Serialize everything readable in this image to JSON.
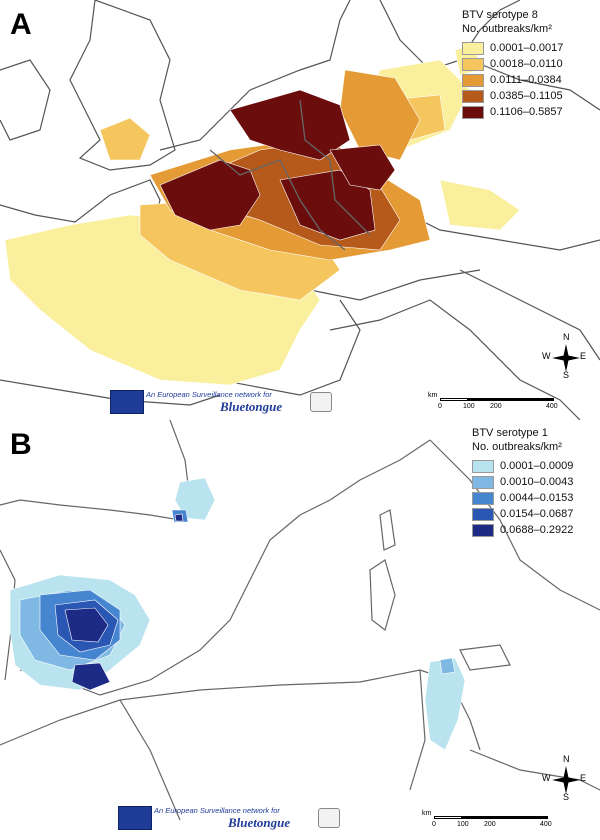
{
  "panels": [
    {
      "letter": "A",
      "legend": {
        "title_line1": "BTV serotype 8",
        "title_line2": "No. outbreaks/km²",
        "classes": [
          {
            "label": "0.0001–0.0017",
            "color": "#f9ef9c"
          },
          {
            "label": "0.0018–0.0110",
            "color": "#f5c55e"
          },
          {
            "label": "0.0111–0.0384",
            "color": "#e59b35"
          },
          {
            "label": "0.0385–0.1105",
            "color": "#b65a1c"
          },
          {
            "label": "0.1106–0.5857",
            "color": "#6b0d0d"
          }
        ]
      },
      "scalebar": {
        "unit": "km",
        "ticks": [
          "0",
          "100",
          "200",
          "400"
        ]
      },
      "compass": {
        "n": "N",
        "s": "S",
        "e": "E",
        "w": "W"
      },
      "banner": {
        "text": "An European Surveillance network for",
        "logo_text": "Bluetongue"
      }
    },
    {
      "letter": "B",
      "legend": {
        "title_line1": "BTV serotype 1",
        "title_line2": "No. outbreaks/km²",
        "classes": [
          {
            "label": "0.0001–0.0009",
            "color": "#b9e3ee"
          },
          {
            "label": "0.0010–0.0043",
            "color": "#7fb9e3"
          },
          {
            "label": "0.0044–0.0153",
            "color": "#4685cf"
          },
          {
            "label": "0.0154–0.0687",
            "color": "#2a57b3"
          },
          {
            "label": "0.0688–0.2922",
            "color": "#1d2a86"
          }
        ]
      },
      "scalebar": {
        "unit": "km",
        "ticks": [
          "0",
          "100",
          "200",
          "400"
        ]
      },
      "compass": {
        "n": "N",
        "s": "S",
        "e": "E",
        "w": "W"
      },
      "banner": {
        "text": "An European Surveillance network for",
        "logo_text": "Bluetongue"
      }
    }
  ]
}
